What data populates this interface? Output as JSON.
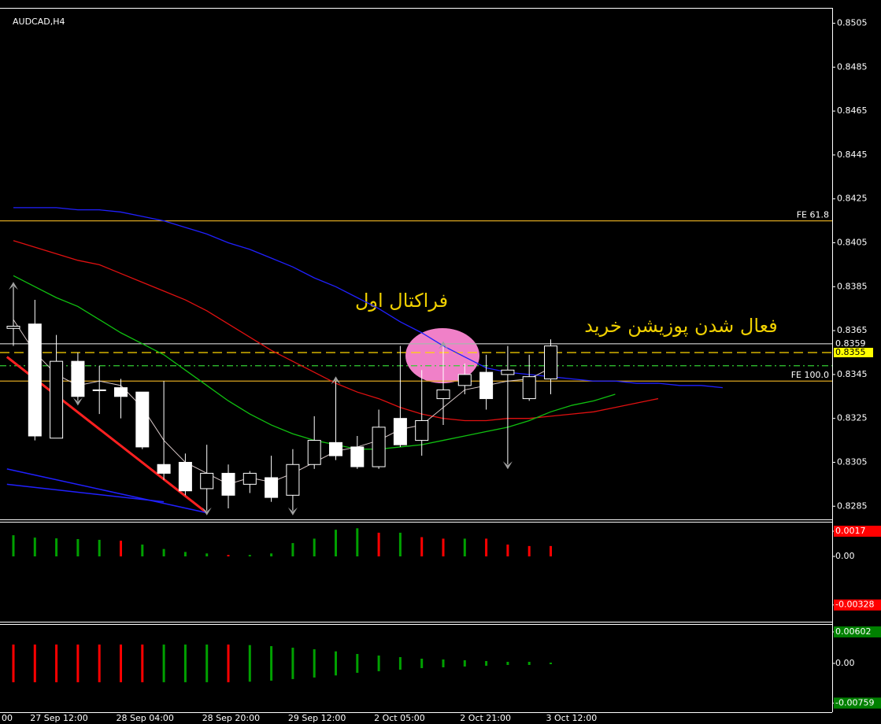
{
  "chart_data": {
    "type": "candlestick",
    "title": "AUDCAD,H4",
    "open": [
      0.8366,
      0.8368,
      0.8316,
      0.8351,
      0.8338,
      0.8339,
      0.8337,
      0.8304,
      0.8305,
      0.8293,
      0.83,
      0.8295,
      0.8298,
      0.829,
      0.8304,
      0.8314,
      0.8312,
      0.8303,
      0.8325,
      0.8315,
      0.8334,
      0.834,
      0.8346,
      0.8345,
      0.8334,
      0.8343
    ],
    "high": [
      0.8385,
      0.8379,
      0.8363,
      0.8355,
      0.8349,
      0.8343,
      0.8337,
      0.8342,
      0.8309,
      0.8313,
      0.8304,
      0.8301,
      0.8308,
      0.8311,
      0.8326,
      0.8342,
      0.8317,
      0.8329,
      0.8358,
      0.8347,
      0.8358,
      0.835,
      0.8354,
      0.8358,
      0.8354,
      0.8361
    ],
    "low": [
      0.8358,
      0.8315,
      0.8316,
      0.8333,
      0.8327,
      0.8325,
      0.8311,
      0.8297,
      0.829,
      0.8283,
      0.8284,
      0.8291,
      0.8287,
      0.8283,
      0.8302,
      0.8306,
      0.8302,
      0.8302,
      0.8312,
      0.8308,
      0.8322,
      0.8336,
      0.8329,
      0.8304,
      0.8333,
      0.8336
    ],
    "close": [
      0.8367,
      0.8317,
      0.8351,
      0.8335,
      0.8338,
      0.8335,
      0.8312,
      0.83,
      0.8292,
      0.83,
      0.829,
      0.83,
      0.8289,
      0.8304,
      0.8315,
      0.8308,
      0.8303,
      0.8321,
      0.8313,
      0.8324,
      0.8338,
      0.8345,
      0.8334,
      0.8347,
      0.8344,
      0.8358
    ],
    "ylim": [
      0.8279,
      0.8512
    ],
    "yticks": [
      0.8505,
      0.8485,
      0.8465,
      0.8445,
      0.8425,
      0.8405,
      0.8385,
      0.8365,
      0.8345,
      0.8325,
      0.8305,
      0.8285
    ],
    "xticks": [
      {
        "value": -3,
        "label": "00"
      },
      {
        "value": 1,
        "label": "27 Sep 12:00"
      },
      {
        "value": 5,
        "label": "28 Sep 04:00"
      },
      {
        "value": 9,
        "label": "28 Sep 20:00"
      },
      {
        "value": 13,
        "label": "29 Sep 12:00"
      },
      {
        "value": 17,
        "label": "2 Oct 05:00"
      },
      {
        "value": 21,
        "label": "2 Oct 21:00"
      },
      {
        "value": 25,
        "label": "3 Oct 12:00"
      }
    ],
    "moving_averages": [
      {
        "color": "#2020ff",
        "values": [
          0.8421,
          0.8421,
          0.8421,
          0.842,
          0.842,
          0.8419,
          0.8417,
          0.8415,
          0.8412,
          0.8409,
          0.8405,
          0.8402,
          0.8398,
          0.8394,
          0.8389,
          0.8385,
          0.838,
          0.8375,
          0.8369,
          0.8364,
          0.8358,
          0.8353,
          0.8348,
          0.8346,
          0.8345,
          0.8344,
          0.8343,
          0.8342,
          0.8342,
          0.8341,
          0.8341,
          0.834,
          0.834,
          0.8339
        ]
      },
      {
        "color": "#e01010",
        "values": [
          0.8406,
          0.8403,
          0.84,
          0.8397,
          0.8395,
          0.8391,
          0.8387,
          0.8383,
          0.8379,
          0.8374,
          0.8368,
          0.8362,
          0.8356,
          0.8351,
          0.8346,
          0.8341,
          0.8337,
          0.8334,
          0.833,
          0.8327,
          0.8325,
          0.8324,
          0.8324,
          0.8325,
          0.8325,
          0.8326,
          0.8327,
          0.8328,
          0.833,
          0.8332,
          0.8334
        ]
      },
      {
        "color": "#10c010",
        "values": [
          0.839,
          0.8385,
          0.838,
          0.8376,
          0.837,
          0.8364,
          0.8359,
          0.8354,
          0.8347,
          0.834,
          0.8333,
          0.8327,
          0.8322,
          0.8318,
          0.8315,
          0.8313,
          0.8311,
          0.8311,
          0.8312,
          0.8313,
          0.8315,
          0.8317,
          0.8319,
          0.8321,
          0.8324,
          0.8328,
          0.8331,
          0.8333,
          0.8336
        ]
      },
      {
        "color": "#d8c8c8",
        "values": [
          0.837,
          0.8355,
          0.8345,
          0.834,
          0.8342,
          0.834,
          0.833,
          0.8315,
          0.8305,
          0.83,
          0.8295,
          0.8298,
          0.8296,
          0.83,
          0.8305,
          0.831,
          0.8312,
          0.8315,
          0.832,
          0.8322,
          0.833,
          0.8338,
          0.834,
          0.8342,
          0.8343,
          0.8348
        ]
      }
    ],
    "trendlines": [
      {
        "color": "#ff2020",
        "width": 3,
        "x1": -0.3,
        "y1": 0.8353,
        "x2": 9,
        "y2": 0.8282
      },
      {
        "color": "#2020ff",
        "width": 1.5,
        "x1": -0.3,
        "y1": 0.8302,
        "x2": 9,
        "y2": 0.8282
      },
      {
        "color": "#2020ff",
        "width": 1.5,
        "x1": -0.3,
        "y1": 0.8295,
        "x2": 7,
        "y2": 0.8287
      }
    ],
    "levels": [
      {
        "name": "FE 61.8",
        "value": 0.8415,
        "color": "#daa520",
        "style": "solid"
      },
      {
        "name": "FE 100.0",
        "value": 0.8342,
        "color": "#daa520",
        "style": "solid"
      },
      {
        "value": 0.8359,
        "color": "#b0b0b0",
        "style": "solid",
        "price_tag": true
      },
      {
        "value": 0.8355,
        "color": "#ffd700",
        "style": "dashed",
        "price_tag": true,
        "tag_fill": "#ffff00"
      },
      {
        "value": 0.8349,
        "color": "#32cd32",
        "style": "dashdot"
      }
    ],
    "fractals": [
      {
        "index": 0,
        "price": 0.8385,
        "dir": "up"
      },
      {
        "index": 15,
        "price": 0.8342,
        "dir": "up"
      },
      {
        "index": 20,
        "price": 0.8358,
        "dir": "up"
      },
      {
        "index": 3,
        "price": 0.8333,
        "dir": "down"
      },
      {
        "index": 9,
        "price": 0.8283,
        "dir": "down"
      },
      {
        "index": 13,
        "price": 0.8283,
        "dir": "down"
      },
      {
        "index": 23,
        "price": 0.8304,
        "dir": "down"
      }
    ],
    "annotations": [
      "فراکتال اول",
      "فعال شدن پوزیشن خرید"
    ],
    "indicator_panels": [
      {
        "ylim": [
          -0.00441,
          0.00234
        ],
        "yticks": [
          0.0017,
          {
            "value": 0,
            "label": "0.00"
          },
          -0.00328
        ],
        "tick_box_color": "#ff0000",
        "values": [
          0.00143,
          0.00127,
          0.00122,
          0.00117,
          0.00112,
          0.00106,
          0.0008,
          0.0005,
          0.0003,
          0.0002,
          0.0001,
          0.0001,
          0.0002,
          0.0009,
          0.0012,
          0.0018,
          0.0019,
          0.0016,
          0.0016,
          0.0013,
          0.0012,
          0.0012,
          0.0012,
          0.0008,
          0.0007,
          0.0007
        ],
        "colors": [
          "#00a000",
          "#00a000",
          "#00a000",
          "#00a000",
          "#00a000",
          "#ff0000",
          "#00a000",
          "#00a000",
          "#00a000",
          "#00a000",
          "#ff0000",
          "#00a000",
          "#00a000",
          "#00a000",
          "#00a000",
          "#00a000",
          "#00a000",
          "#ff0000",
          "#00a000",
          "#ff0000",
          "#ff0000",
          "#00a000",
          "#ff0000",
          "#ff0000",
          "#ff0000",
          "#ff0000"
        ],
        "symmetric": false
      },
      {
        "ylim": [
          -0.00933,
          0.00752
        ],
        "yticks": [
          0.00602,
          {
            "value": 0,
            "label": "0.00"
          },
          -0.00759
        ],
        "tick_box_color": "#008000",
        "values": [
          0.0036,
          0.0036,
          0.0036,
          0.0036,
          0.0036,
          0.0036,
          0.0036,
          0.0036,
          0.0036,
          0.0036,
          0.0036,
          0.0035,
          0.0033,
          0.003,
          0.0027,
          0.0023,
          0.0018,
          0.0015,
          0.0012,
          0.0009,
          0.00075,
          0.0006,
          0.00045,
          0.0003,
          0.0003,
          0.00015
        ],
        "colors": [
          "#ff0000",
          "#ff0000",
          "#ff0000",
          "#ff0000",
          "#ff0000",
          "#ff0000",
          "#ff0000",
          "#00a000",
          "#00a000",
          "#00a000",
          "#ff0000",
          "#00a000",
          "#00a000",
          "#00a000",
          "#00a000",
          "#00a000",
          "#00a000",
          "#00a000",
          "#00a000",
          "#00a000",
          "#00a000",
          "#00a000",
          "#00a000",
          "#00a000",
          "#00a000",
          "#00a000"
        ],
        "symmetric": true
      }
    ]
  }
}
